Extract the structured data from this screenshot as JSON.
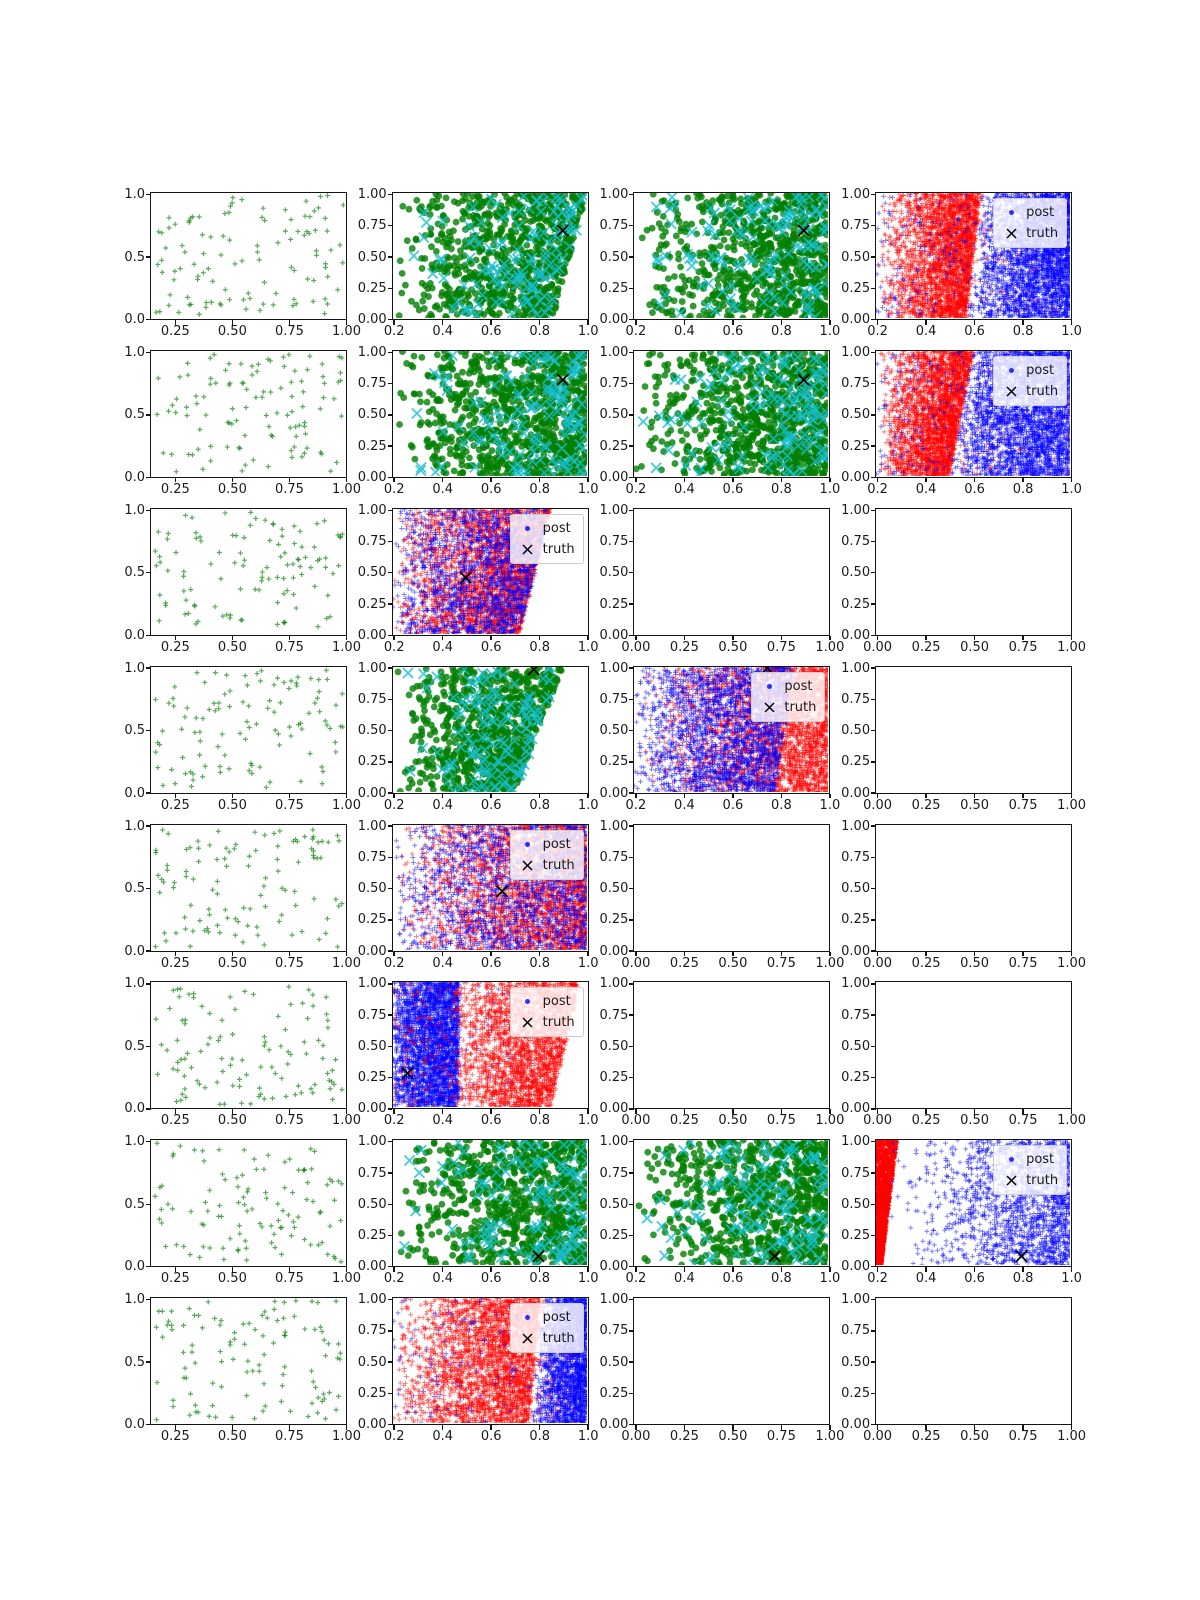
{
  "legend": {
    "post_label": "post",
    "truth_label": "truth"
  },
  "chart_data": {
    "type": "scatter",
    "grid": {
      "rows": 8,
      "cols": 4
    },
    "legend": {
      "post_label": "post",
      "truth_label": "truth",
      "position": "upper right"
    },
    "colors": {
      "green": "#008000",
      "cyan": "#17becf",
      "red": "#ff0000",
      "blue": "#0000ff",
      "truth": "#000000",
      "spine": "#151515",
      "tick_label": "#1a1a1a",
      "legend_border": "#cccccc",
      "legend_bg": "rgba(255,255,255,0.82)"
    },
    "markers": {
      "green": "circle",
      "cyan": "x",
      "red": "plus-small",
      "blue": "plus-small",
      "truth": "x",
      "sparse": "plus-small"
    },
    "tick_sets": {
      "x_col1": {
        "range": [
          0.15,
          1.0
        ],
        "values": [
          0.25,
          0.5,
          0.75,
          1.0
        ],
        "labels": [
          "0.25",
          "0.50",
          "0.75",
          "1.00"
        ]
      },
      "x_02": {
        "range": [
          0.2,
          1.0
        ],
        "values": [
          0.2,
          0.4,
          0.6,
          0.8,
          1.0
        ],
        "labels": [
          "0.2",
          "0.4",
          "0.6",
          "0.8",
          "1.0"
        ]
      },
      "x_01": {
        "range": [
          0.0,
          1.0
        ],
        "values": [
          0.0,
          0.25,
          0.5,
          0.75,
          1.0
        ],
        "labels": [
          "0.00",
          "0.25",
          "0.50",
          "0.75",
          "1.00"
        ]
      },
      "y_col1": {
        "range": [
          0.0,
          1.0
        ],
        "values": [
          0.0,
          0.5,
          1.0
        ],
        "labels": [
          "0.0",
          "0.5",
          "1.0"
        ]
      },
      "y_4": {
        "range": [
          0.0,
          1.0
        ],
        "values": [
          0.0,
          0.25,
          0.5,
          0.75,
          1.0
        ],
        "labels": [
          "0.00",
          "0.25",
          "0.50",
          "0.75",
          "1.00"
        ]
      }
    },
    "subplots": [
      {
        "id": "r1c1",
        "row": 1,
        "col": 1,
        "kind": "sparse",
        "x": "x_col1",
        "y": "y_col1",
        "truth": null,
        "legend": false,
        "series": {
          "n": 110
        }
      },
      {
        "id": "r1c2",
        "row": 1,
        "col": 2,
        "kind": "green_cyan",
        "x": "x_02",
        "y": "y_4",
        "truth": [
          0.9,
          0.7
        ],
        "legend": false,
        "series": {
          "green": 850,
          "cyan": 130,
          "cut": [
            0.86,
            0.14
          ]
        }
      },
      {
        "id": "r1c3",
        "row": 1,
        "col": 3,
        "kind": "green_cyan",
        "x": "x_02",
        "y": "y_4",
        "truth": [
          0.9,
          0.7
        ],
        "legend": false,
        "series": {
          "green": 850,
          "cyan": 130,
          "cut": null
        }
      },
      {
        "id": "r1c4",
        "row": 1,
        "col": 4,
        "kind": "rb_split",
        "x": "x_02",
        "y": "y_4",
        "truth": null,
        "legend": true,
        "series": {
          "boundary": [
            0.57,
            0.06
          ],
          "cross": 0.04,
          "red": {
            "n": 3000,
            "p": 0.45
          },
          "blue": {
            "n": 2800,
            "p": 0.55
          }
        }
      },
      {
        "id": "r2c1",
        "row": 2,
        "col": 1,
        "kind": "sparse",
        "x": "x_col1",
        "y": "y_col1",
        "truth": null,
        "legend": false,
        "series": {
          "n": 110
        }
      },
      {
        "id": "r2c2",
        "row": 2,
        "col": 2,
        "kind": "green_cyan",
        "x": "x_02",
        "y": "y_4",
        "truth": [
          0.9,
          0.77
        ],
        "legend": false,
        "series": {
          "green": 900,
          "cyan": 140,
          "cut": null
        }
      },
      {
        "id": "r2c3",
        "row": 2,
        "col": 3,
        "kind": "green_cyan",
        "x": "x_02",
        "y": "y_4",
        "truth": [
          0.9,
          0.77
        ],
        "legend": false,
        "series": {
          "green": 900,
          "cyan": 140,
          "cut": null
        }
      },
      {
        "id": "r2c4",
        "row": 2,
        "col": 4,
        "kind": "rb_split",
        "x": "x_02",
        "y": "y_4",
        "truth": null,
        "legend": true,
        "series": {
          "boundary": [
            0.5,
            0.1
          ],
          "cross": 0.04,
          "red": {
            "n": 3000,
            "p": 0.45
          },
          "blue": {
            "n": 3000,
            "p": 0.7
          }
        }
      },
      {
        "id": "r3c1",
        "row": 3,
        "col": 1,
        "kind": "sparse",
        "x": "x_col1",
        "y": "y_col1",
        "truth": null,
        "legend": false,
        "series": {
          "n": 110
        }
      },
      {
        "id": "r3c2",
        "row": 3,
        "col": 2,
        "kind": "rb_mix",
        "x": "x_02",
        "y": "y_4",
        "truth": [
          0.5,
          0.45
        ],
        "legend": true,
        "series": {
          "red": {
            "n": 3000,
            "p": 0.5,
            "cut": [
              0.72,
              0.13
            ]
          },
          "blue": {
            "n": 1700,
            "p": 0.6,
            "cut": [
              0.72,
              0.13
            ]
          }
        }
      },
      {
        "id": "r3c3",
        "row": 3,
        "col": 3,
        "kind": "empty",
        "x": "x_01",
        "y": "y_4",
        "truth": null,
        "legend": false,
        "series": {}
      },
      {
        "id": "r3c4",
        "row": 3,
        "col": 4,
        "kind": "empty",
        "x": "x_01",
        "y": "y_4",
        "truth": null,
        "legend": false,
        "series": {}
      },
      {
        "id": "r4c1",
        "row": 4,
        "col": 1,
        "kind": "sparse",
        "x": "x_col1",
        "y": "y_col1",
        "truth": null,
        "legend": false,
        "series": {
          "n": 110
        }
      },
      {
        "id": "r4c2",
        "row": 4,
        "col": 2,
        "kind": "green_cyan",
        "x": "x_02",
        "y": "y_4",
        "truth": [
          0.78,
          0.98
        ],
        "legend": false,
        "series": {
          "green": 850,
          "cyan": 130,
          "cut": [
            0.7,
            0.2
          ]
        }
      },
      {
        "id": "r4c3",
        "row": 4,
        "col": 3,
        "kind": "rb_mix",
        "x": "x_02",
        "y": "y_4",
        "truth": [
          0.75,
          0.99
        ],
        "legend": true,
        "series": {
          "red": {
            "n": 3000,
            "p": 0.4,
            "cut": null
          },
          "blue": {
            "n": 2200,
            "p": 0.6,
            "cut": [
              0.78,
              0.08
            ]
          }
        }
      },
      {
        "id": "r4c4",
        "row": 4,
        "col": 4,
        "kind": "empty",
        "x": "x_01",
        "y": "y_4",
        "truth": null,
        "legend": false,
        "series": {}
      },
      {
        "id": "r5c1",
        "row": 5,
        "col": 1,
        "kind": "sparse",
        "x": "x_col1",
        "y": "y_col1",
        "truth": null,
        "legend": false,
        "series": {
          "n": 110
        }
      },
      {
        "id": "r5c2",
        "row": 5,
        "col": 2,
        "kind": "rb_mix",
        "x": "x_02",
        "y": "y_4",
        "truth": [
          0.65,
          0.47
        ],
        "legend": true,
        "series": {
          "red": {
            "n": 3000,
            "p": 0.45,
            "cut": null
          },
          "blue": {
            "n": 1700,
            "p": 0.6,
            "cut": null
          }
        }
      },
      {
        "id": "r5c3",
        "row": 5,
        "col": 3,
        "kind": "empty",
        "x": "x_01",
        "y": "y_4",
        "truth": null,
        "legend": false,
        "series": {}
      },
      {
        "id": "r5c4",
        "row": 5,
        "col": 4,
        "kind": "empty",
        "x": "x_01",
        "y": "y_4",
        "truth": null,
        "legend": false,
        "series": {}
      },
      {
        "id": "r6c1",
        "row": 6,
        "col": 1,
        "kind": "sparse",
        "x": "x_col1",
        "y": "y_col1",
        "truth": null,
        "legend": false,
        "series": {
          "n": 110
        }
      },
      {
        "id": "r6c2",
        "row": 6,
        "col": 2,
        "kind": "band",
        "x": "x_02",
        "y": "y_4",
        "truth": [
          0.26,
          0.27
        ],
        "legend": true,
        "series": {
          "blue": {
            "n": 2800,
            "x0": 0.2,
            "w": 0.27,
            "p": 0.7
          },
          "red": {
            "n": 2600,
            "x0": 0.44,
            "p": 0.55,
            "cut": [
              0.85,
              0.12
            ]
          }
        }
      },
      {
        "id": "r6c3",
        "row": 6,
        "col": 3,
        "kind": "empty",
        "x": "x_01",
        "y": "y_4",
        "truth": null,
        "legend": false,
        "series": {}
      },
      {
        "id": "r6c4",
        "row": 6,
        "col": 4,
        "kind": "empty",
        "x": "x_01",
        "y": "y_4",
        "truth": null,
        "legend": false,
        "series": {}
      },
      {
        "id": "r7c1",
        "row": 7,
        "col": 1,
        "kind": "sparse",
        "x": "x_col1",
        "y": "y_col1",
        "truth": null,
        "legend": false,
        "series": {
          "n": 110
        }
      },
      {
        "id": "r7c2",
        "row": 7,
        "col": 2,
        "kind": "green_cyan",
        "x": "x_02",
        "y": "y_4",
        "truth": [
          0.8,
          0.07
        ],
        "legend": false,
        "series": {
          "green": 850,
          "cyan": 130,
          "cut": null
        }
      },
      {
        "id": "r7c3",
        "row": 7,
        "col": 3,
        "kind": "green_cyan",
        "x": "x_02",
        "y": "y_4",
        "truth": [
          0.78,
          0.07
        ],
        "legend": false,
        "series": {
          "green": 850,
          "cyan": 130,
          "cut": null
        }
      },
      {
        "id": "r7c4",
        "row": 7,
        "col": 4,
        "kind": "wedge",
        "x": "x_02",
        "y": "y_4",
        "truth": [
          0.8,
          0.07
        ],
        "legend": true,
        "series": {
          "red": {
            "n": 2400,
            "base": 0.225,
            "slope": 0.065
          },
          "blue": {
            "n": 1700,
            "p": 0.35
          }
        }
      },
      {
        "id": "r8c1",
        "row": 8,
        "col": 1,
        "kind": "sparse",
        "x": "x_col1",
        "y": "y_col1",
        "truth": null,
        "legend": false,
        "series": {
          "n": 110
        }
      },
      {
        "id": "r8c2",
        "row": 8,
        "col": 2,
        "kind": "rb_split",
        "x": "x_02",
        "y": "y_4",
        "truth": null,
        "legend": true,
        "series": {
          "boundary": [
            0.76,
            0.05
          ],
          "cross": 0.05,
          "red": {
            "n": 3000,
            "p": 0.5
          },
          "blue": {
            "n": 2000,
            "p": 0.55
          }
        }
      },
      {
        "id": "r8c3",
        "row": 8,
        "col": 3,
        "kind": "empty",
        "x": "x_01",
        "y": "y_4",
        "truth": null,
        "legend": false,
        "series": {}
      },
      {
        "id": "r8c4",
        "row": 8,
        "col": 4,
        "kind": "empty",
        "x": "x_01",
        "y": "y_4",
        "truth": null,
        "legend": false,
        "series": {}
      }
    ]
  }
}
